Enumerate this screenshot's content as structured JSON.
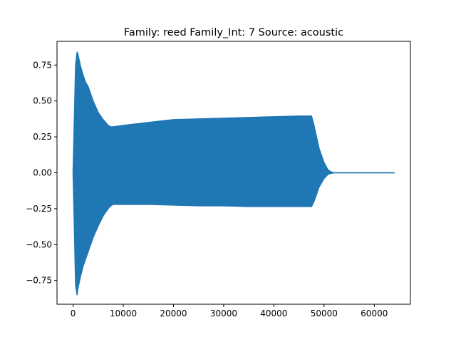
{
  "chart_data": {
    "type": "area",
    "title": "Family: reed Family_Int: 7 Source: acoustic",
    "xlabel": "",
    "ylabel": "",
    "xlim": [
      -3200,
      67200
    ],
    "ylim": [
      -0.915,
      0.915
    ],
    "x_ticks": [
      0,
      10000,
      20000,
      30000,
      40000,
      50000,
      60000
    ],
    "x_tick_labels": [
      "0",
      "10000",
      "20000",
      "30000",
      "40000",
      "50000",
      "60000"
    ],
    "y_ticks": [
      0.75,
      0.5,
      0.25,
      0.0,
      -0.25,
      -0.5,
      -0.75
    ],
    "y_tick_labels": [
      "0.75",
      "0.50",
      "0.25",
      "0.00",
      "−0.25",
      "−0.50",
      "−0.75"
    ],
    "grid": false,
    "color": "#1f77b4",
    "series": [
      {
        "x": [
          0,
          200,
          500,
          800,
          1000,
          1500,
          2000,
          2500,
          3000,
          3500,
          4000,
          5000,
          6000,
          7000,
          7500,
          8000,
          10000,
          15000,
          20000,
          25000,
          30000,
          35000,
          40000,
          45000,
          47500,
          48000,
          49000,
          50000,
          50800,
          51500,
          52000,
          64000
        ],
        "upper": [
          0.0,
          0.3,
          0.75,
          0.84,
          0.82,
          0.74,
          0.68,
          0.63,
          0.6,
          0.55,
          0.5,
          0.42,
          0.37,
          0.33,
          0.32,
          0.32,
          0.33,
          0.35,
          0.37,
          0.375,
          0.38,
          0.385,
          0.39,
          0.395,
          0.395,
          0.33,
          0.17,
          0.07,
          0.02,
          0.005,
          0.0,
          0.0
        ],
        "lower": [
          0.0,
          -0.3,
          -0.78,
          -0.85,
          -0.8,
          -0.72,
          -0.65,
          -0.6,
          -0.55,
          -0.5,
          -0.45,
          -0.37,
          -0.3,
          -0.25,
          -0.23,
          -0.22,
          -0.22,
          -0.22,
          -0.225,
          -0.23,
          -0.23,
          -0.235,
          -0.235,
          -0.235,
          -0.235,
          -0.2,
          -0.1,
          -0.04,
          -0.01,
          -0.003,
          0.0,
          0.0
        ]
      }
    ]
  }
}
